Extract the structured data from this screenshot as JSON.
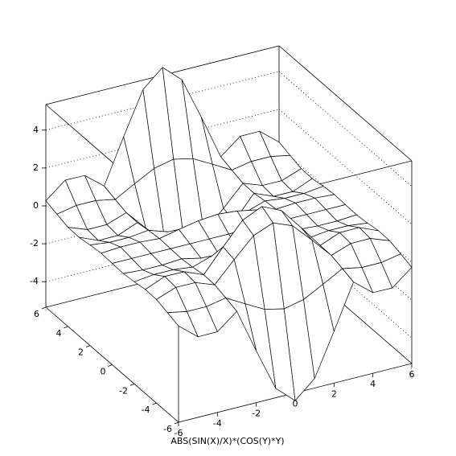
{
  "chart_data": {
    "type": "surface",
    "title": "ABS(SIN(X)/X)*(COS(Y)*Y)",
    "x": [
      -6,
      -5,
      -4,
      -3,
      -2,
      -1,
      0,
      1,
      2,
      3,
      4,
      5,
      6
    ],
    "y": [
      -6,
      -5,
      -4,
      -3,
      -2,
      -1,
      0,
      1,
      2,
      3,
      4,
      5,
      6
    ],
    "z": [
      [
        -0.27,
        -1.1,
        -1.09,
        -0.27,
        -2.62,
        -4.85,
        -5.76,
        -4.85,
        -2.62,
        -0.27,
        -1.09,
        -1.1,
        -0.27
      ],
      [
        -0.07,
        -0.27,
        -0.27,
        -0.07,
        -0.64,
        -1.19,
        -1.42,
        -1.19,
        -0.64,
        -0.07,
        -0.27,
        -0.27,
        -0.07
      ],
      [
        0.12,
        0.5,
        0.49,
        0.12,
        1.19,
        2.2,
        2.61,
        2.2,
        1.19,
        0.12,
        0.49,
        0.5,
        0.12
      ],
      [
        0.14,
        0.57,
        0.56,
        0.14,
        1.35,
        2.5,
        2.97,
        2.5,
        1.35,
        0.14,
        0.56,
        0.57,
        0.14
      ],
      [
        0.04,
        0.16,
        0.16,
        0.04,
        0.38,
        0.7,
        0.83,
        0.7,
        0.38,
        0.04,
        0.16,
        0.16,
        0.04
      ],
      [
        -0.03,
        -0.1,
        -0.1,
        -0.03,
        -0.25,
        -0.45,
        -0.54,
        -0.45,
        -0.25,
        -0.03,
        -0.1,
        -0.1,
        -0.03
      ],
      [
        0,
        0,
        0,
        0,
        0,
        0,
        0,
        0,
        0,
        0,
        0,
        0,
        0
      ],
      [
        0.03,
        0.1,
        0.1,
        0.03,
        0.25,
        0.45,
        0.54,
        0.45,
        0.25,
        0.03,
        0.1,
        0.1,
        0.03
      ],
      [
        -0.04,
        -0.16,
        -0.16,
        -0.04,
        -0.38,
        -0.7,
        -0.83,
        -0.7,
        -0.38,
        -0.04,
        -0.16,
        -0.16,
        -0.04
      ],
      [
        -0.14,
        -0.57,
        -0.56,
        -0.14,
        -1.35,
        -2.5,
        -2.97,
        -2.5,
        -1.35,
        -0.14,
        -0.56,
        -0.57,
        -0.14
      ],
      [
        -0.12,
        -0.5,
        -0.49,
        -0.12,
        -1.19,
        -2.2,
        -2.61,
        -2.2,
        -1.19,
        -0.12,
        -0.49,
        -0.5,
        -0.12
      ],
      [
        0.07,
        0.27,
        0.27,
        0.07,
        0.64,
        1.19,
        1.42,
        1.19,
        0.64,
        0.07,
        0.27,
        0.27,
        0.07
      ],
      [
        0.27,
        1.1,
        1.09,
        0.27,
        2.62,
        4.85,
        5.76,
        4.85,
        2.62,
        0.27,
        1.09,
        1.1,
        0.27
      ]
    ],
    "xlim": [
      -6,
      6
    ],
    "ylim": [
      -6,
      6
    ],
    "zlim": [
      -5.35,
      5.35
    ],
    "xticks": [
      -6,
      -4,
      -2,
      0,
      2,
      4,
      6
    ],
    "yticks": [
      -6,
      -4,
      -2,
      0,
      2,
      4,
      6
    ],
    "zticks": [
      -4,
      -2,
      0,
      2,
      4
    ],
    "grid": true,
    "color": "#000000"
  }
}
